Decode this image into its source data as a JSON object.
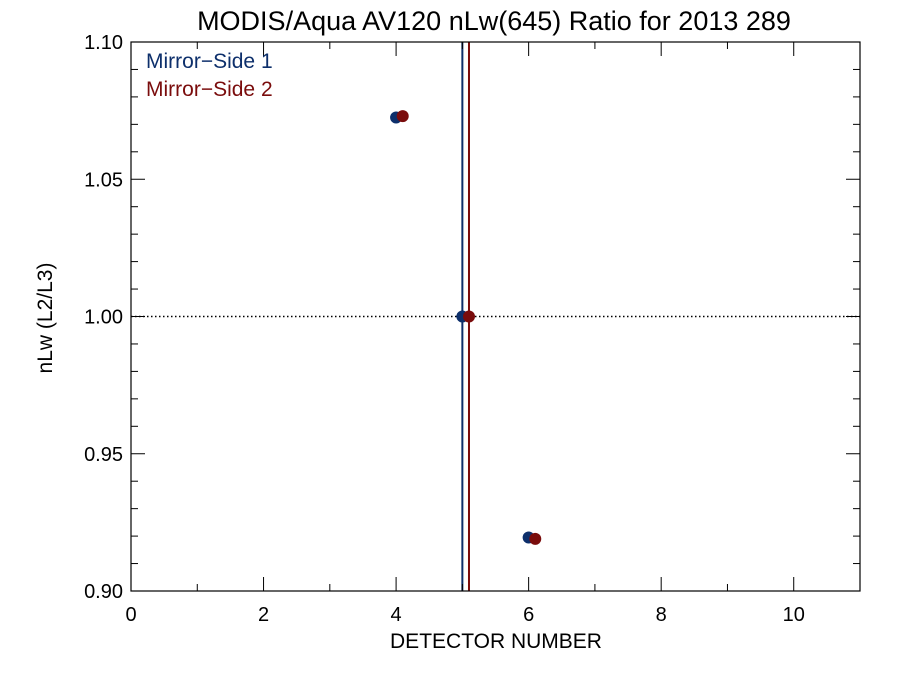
{
  "chart_data": {
    "type": "scatter",
    "title": "MODIS/Aqua AV120 nLw(645) Ratio for 2013 289",
    "xlabel": "DETECTOR NUMBER",
    "ylabel": "nLw (L2/L3)",
    "xlim": [
      0,
      11
    ],
    "ylim": [
      0.9,
      1.1
    ],
    "xticks": [
      0,
      2,
      4,
      6,
      8,
      10
    ],
    "xtick_labels": [
      "0",
      "2",
      "4",
      "6",
      "8",
      "10"
    ],
    "yticks": [
      0.9,
      0.95,
      1.0,
      1.05,
      1.1
    ],
    "ytick_labels": [
      "0.90",
      "0.95",
      "1.00",
      "1.05",
      "1.10"
    ],
    "reference_line_y": 1.0,
    "legend_position": "top-left",
    "grid": false,
    "series": [
      {
        "name": "Mirror−Side 1",
        "color": "#0d2f6b",
        "x": [
          4.0,
          5.0,
          6.0
        ],
        "y": [
          1.0725,
          1.0,
          0.9195
        ],
        "vline_x": 5.0
      },
      {
        "name": "Mirror−Side 2",
        "color": "#7a0c0c",
        "x": [
          4.1,
          5.1,
          6.1
        ],
        "y": [
          1.073,
          1.0,
          0.919
        ],
        "vline_x": 5.1
      }
    ]
  }
}
